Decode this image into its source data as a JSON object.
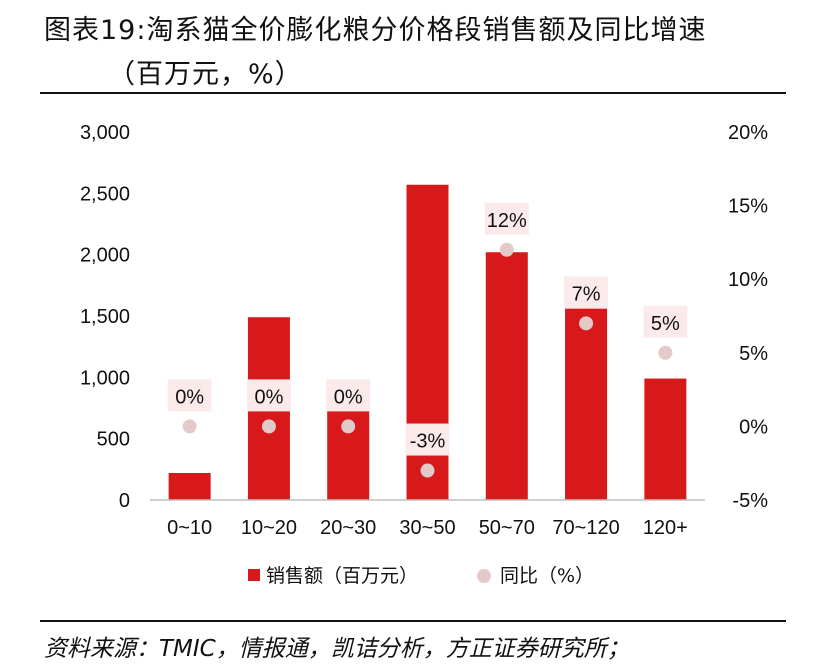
{
  "header": {
    "title_line1": "图表19:淘系猫全价膨化粮分价格段销售额及同比增速",
    "title_line2": "（百万元，%）"
  },
  "footer": {
    "source": "资料来源：TMIC，情报通，凯诘分析，方正证券研究所；"
  },
  "chart_data": {
    "type": "bar",
    "categories": [
      "0~10",
      "10~20",
      "20~30",
      "30~50",
      "50~70",
      "70~120",
      "120+"
    ],
    "series": [
      {
        "name": "销售额（百万元）",
        "type": "bar",
        "axis": "left",
        "values": [
          220,
          1490,
          730,
          2570,
          2020,
          1560,
          990
        ],
        "color": "#d7191c"
      },
      {
        "name": "同比（%）",
        "type": "scatter",
        "axis": "right",
        "values": [
          0,
          0,
          0,
          -3,
          12,
          7,
          5
        ],
        "color": "#e4c9c9"
      }
    ],
    "data_labels": [
      "0%",
      "0%",
      "0%",
      "-3%",
      "12%",
      "7%",
      "5%"
    ],
    "y_left": {
      "min": 0,
      "max": 3000,
      "ticks": [
        "0",
        "500",
        "1,000",
        "1,500",
        "2,000",
        "2,500",
        "3,000"
      ]
    },
    "y_right": {
      "min": -5,
      "max": 20,
      "ticks": [
        "-5%",
        "0%",
        "5%",
        "10%",
        "15%",
        "20%"
      ]
    },
    "legend_position": "bottom",
    "grid": false,
    "label_box_color": "#fbeaea"
  }
}
